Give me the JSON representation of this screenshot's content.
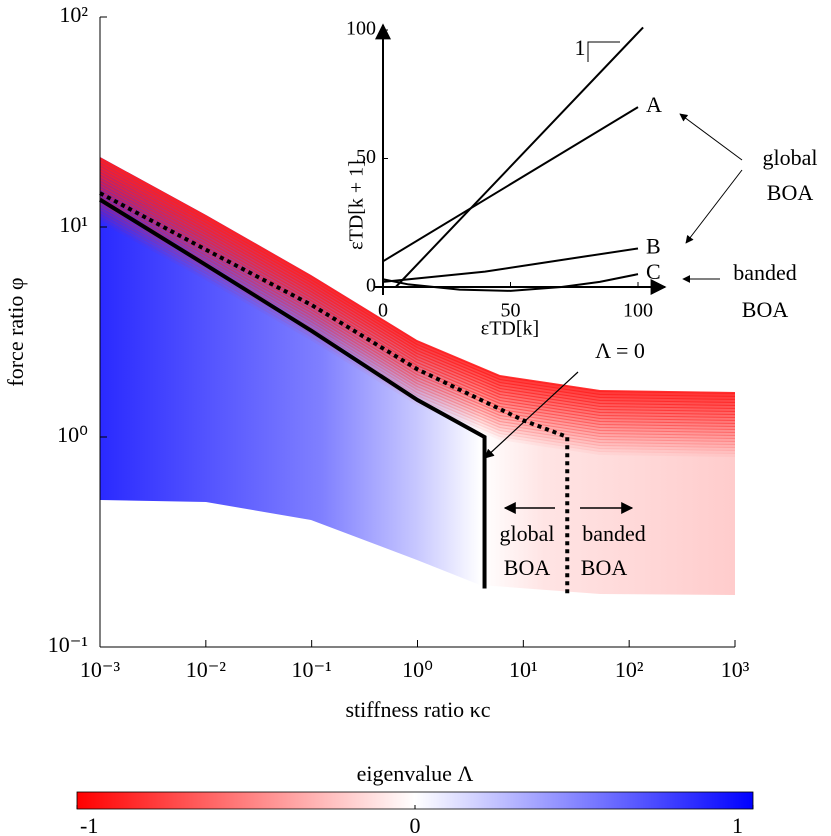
{
  "chart_data": [
    {
      "type": "line",
      "xscale": "log",
      "yscale": "log",
      "xlabel": "stiffness ratio κc",
      "ylabel": "force ratio φ",
      "xlim": [
        0.001,
        1000
      ],
      "ylim": [
        0.1,
        100
      ],
      "xticks": [
        {
          "value": 0.001,
          "label": "10⁻³"
        },
        {
          "value": 0.01,
          "label": "10⁻²"
        },
        {
          "value": 0.1,
          "label": "10⁻¹"
        },
        {
          "value": 1,
          "label": "10⁰"
        },
        {
          "value": 10,
          "label": "10¹"
        },
        {
          "value": 100,
          "label": "10²"
        },
        {
          "value": 1000,
          "label": "10³"
        }
      ],
      "yticks": [
        {
          "value": 0.1,
          "label": "10⁻¹"
        },
        {
          "value": 1,
          "label": "10⁰"
        },
        {
          "value": 10,
          "label": "10¹"
        },
        {
          "value": 100,
          "label": "10²"
        }
      ],
      "series": [
        {
          "name": "Λ = 0",
          "color": "#000000",
          "style": "solid",
          "x": [
            0.001,
            0.01,
            0.1,
            1,
            4.3,
            4.3
          ],
          "y": [
            13.5,
            6.6,
            3.2,
            1.5,
            1.0,
            0.19
          ]
        },
        {
          "color": "#000000",
          "style": "dotted",
          "x": [
            0.001,
            0.01,
            0.1,
            1,
            10,
            26,
            26
          ],
          "y": [
            14.5,
            7.8,
            4.25,
            2.1,
            1.2,
            1.0,
            0.18
          ]
        }
      ],
      "annotations": [
        {
          "lines": [
            "global",
            "BOA"
          ]
        },
        {
          "lines": [
            "banded",
            "BOA"
          ]
        }
      ]
    },
    {
      "type": "line",
      "xlabel": "εTD[k]",
      "ylabel": "εTD[k + 1]",
      "xlim": [
        0,
        100
      ],
      "ylim": [
        0,
        100
      ],
      "xticks": [
        0,
        50,
        100
      ],
      "yticks": [
        0,
        50,
        100
      ],
      "series": [
        {
          "color": "#000000",
          "x": [
            5,
            102
          ],
          "y": [
            0,
            101
          ]
        },
        {
          "name": "A",
          "color": "#000000",
          "x": [
            0,
            100
          ],
          "y": [
            10,
            70
          ]
        },
        {
          "name": "B",
          "color": "#000000",
          "x": [
            0,
            20,
            40,
            60,
            80,
            100
          ],
          "y": [
            2,
            4,
            6,
            9,
            12,
            15
          ]
        },
        {
          "name": "C",
          "color": "#000000",
          "x": [
            0,
            10,
            30,
            50,
            70,
            85,
            100
          ],
          "y": [
            3,
            1,
            -1,
            -1.5,
            0,
            2,
            5
          ]
        }
      ],
      "annotations": [
        {
          "lines": [
            "1"
          ]
        },
        {
          "lines": [
            "global",
            "BOA"
          ]
        },
        {
          "lines": [
            "banded",
            "BOA"
          ]
        }
      ]
    },
    {
      "type": "colorbar",
      "title": "eigenvalue Λ",
      "lim": [
        -1,
        1
      ],
      "ticks": [
        -1,
        0,
        1
      ],
      "colors": [
        "#ff0000",
        "#ffffff",
        "#0000ff"
      ]
    }
  ]
}
